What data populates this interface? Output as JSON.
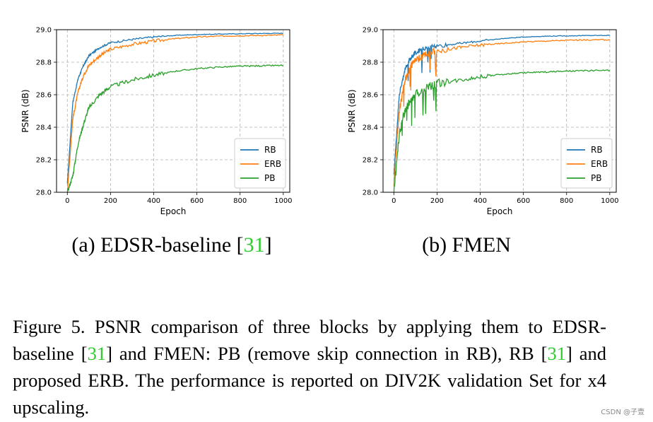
{
  "chart_data": [
    {
      "type": "line",
      "xlabel": "Epoch",
      "ylabel": "PSNR (dB)",
      "xlim": [
        -50,
        1030
      ],
      "ylim": [
        28.0,
        29.0
      ],
      "xticks": [
        "0",
        "200",
        "400",
        "600",
        "800",
        "1000"
      ],
      "yticks": [
        "28.0",
        "28.2",
        "28.4",
        "28.6",
        "28.8",
        "29.0"
      ],
      "grid": true,
      "legend_position": "lower-right",
      "x": [
        0,
        25,
        50,
        75,
        100,
        150,
        200,
        300,
        400,
        500,
        600,
        700,
        800,
        900,
        1000
      ],
      "series": [
        {
          "name": "RB",
          "color": "#1f77b4",
          "values": [
            28.05,
            28.55,
            28.7,
            28.78,
            28.84,
            28.89,
            28.92,
            28.94,
            28.955,
            28.965,
            28.97,
            28.973,
            28.975,
            28.977,
            28.978
          ]
        },
        {
          "name": "ERB",
          "color": "#ff7f0e",
          "values": [
            28.0,
            28.45,
            28.62,
            28.72,
            28.78,
            28.84,
            28.88,
            28.91,
            28.93,
            28.945,
            28.955,
            28.96,
            28.963,
            28.965,
            28.967
          ]
        },
        {
          "name": "PB",
          "color": "#2ca02c",
          "values": [
            28.0,
            28.1,
            28.3,
            28.42,
            28.52,
            28.6,
            28.65,
            28.69,
            28.72,
            28.745,
            28.76,
            28.77,
            28.775,
            28.778,
            28.78
          ]
        }
      ]
    },
    {
      "type": "line",
      "xlabel": "Epoch",
      "ylabel": "PSNR (dB)",
      "xlim": [
        -50,
        1030
      ],
      "ylim": [
        28.0,
        29.0
      ],
      "xticks": [
        "0",
        "200",
        "400",
        "600",
        "800",
        "1000"
      ],
      "yticks": [
        "28.0",
        "28.2",
        "28.4",
        "28.6",
        "28.8",
        "29.0"
      ],
      "grid": true,
      "legend_position": "lower-right",
      "x": [
        0,
        25,
        50,
        75,
        100,
        150,
        200,
        300,
        400,
        500,
        600,
        700,
        800,
        900,
        1000
      ],
      "series": [
        {
          "name": "RB",
          "color": "#1f77b4",
          "values": [
            28.1,
            28.6,
            28.75,
            28.82,
            28.86,
            28.89,
            28.9,
            28.915,
            28.93,
            28.945,
            28.955,
            28.96,
            28.962,
            28.964,
            28.965
          ]
        },
        {
          "name": "ERB",
          "color": "#ff7f0e",
          "values": [
            28.05,
            28.5,
            28.68,
            28.77,
            28.81,
            28.85,
            28.87,
            28.89,
            28.905,
            28.915,
            28.925,
            28.93,
            28.935,
            28.937,
            28.938
          ]
        },
        {
          "name": "PB",
          "color": "#2ca02c",
          "values": [
            28.0,
            28.35,
            28.5,
            28.56,
            28.6,
            28.64,
            28.67,
            28.69,
            28.71,
            28.725,
            28.735,
            28.74,
            28.745,
            28.748,
            28.75
          ]
        }
      ]
    }
  ],
  "subcaptions": {
    "a_prefix": "(a) EDSR-baseline [",
    "a_ref": "31",
    "a_suffix": "]",
    "b": "(b) FMEN"
  },
  "caption": {
    "part1": "Figure 5.  PSNR comparison of three blocks by applying them to EDSR-baseline [",
    "ref1": "31",
    "part2": "] and FMEN: PB (remove skip connection in RB), RB [",
    "ref2": "31",
    "part3": "] and proposed ERB. The performance is reported on DIV2K validation Set for x4 upscaling."
  },
  "watermark": "CSDN @子壹"
}
